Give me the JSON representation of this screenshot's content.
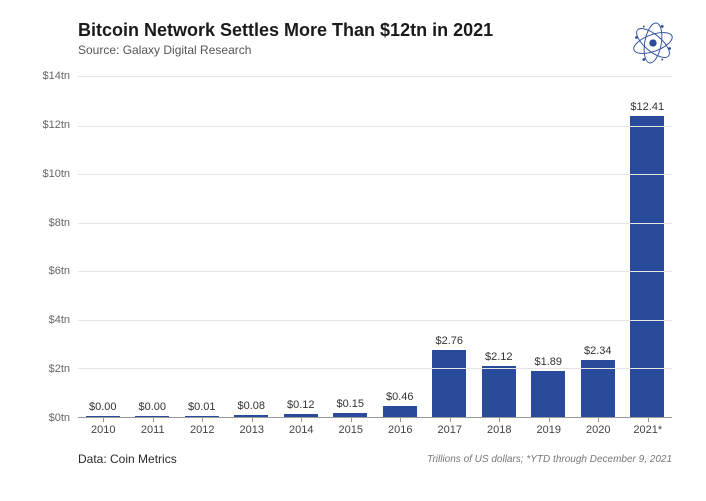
{
  "header": {
    "title": "Bitcoin Network Settles More Than $12tn in 2021",
    "subtitle": "Source: Galaxy Digital Research"
  },
  "chart": {
    "type": "bar",
    "bar_color": "#2a4b9b",
    "background_color": "#ffffff",
    "grid_color": "#e5e5e5",
    "axis_color": "#999999",
    "bar_width": 0.68,
    "ylim": [
      0,
      14
    ],
    "ytick_step": 2,
    "y_ticks": [
      {
        "v": 0,
        "label": "$0tn"
      },
      {
        "v": 2,
        "label": "$2tn"
      },
      {
        "v": 4,
        "label": "$4tn"
      },
      {
        "v": 6,
        "label": "$6tn"
      },
      {
        "v": 8,
        "label": "$8tn"
      },
      {
        "v": 10,
        "label": "$10tn"
      },
      {
        "v": 12,
        "label": "$12tn"
      },
      {
        "v": 14,
        "label": "$14tn"
      }
    ],
    "series": [
      {
        "x": "2010",
        "v": 0.0,
        "label": "$0.00"
      },
      {
        "x": "2011",
        "v": 0.0,
        "label": "$0.00"
      },
      {
        "x": "2012",
        "v": 0.01,
        "label": "$0.01"
      },
      {
        "x": "2013",
        "v": 0.08,
        "label": "$0.08"
      },
      {
        "x": "2014",
        "v": 0.12,
        "label": "$0.12"
      },
      {
        "x": "2015",
        "v": 0.15,
        "label": "$0.15"
      },
      {
        "x": "2016",
        "v": 0.46,
        "label": "$0.46"
      },
      {
        "x": "2017",
        "v": 2.76,
        "label": "$2.76"
      },
      {
        "x": "2018",
        "v": 2.12,
        "label": "$2.12"
      },
      {
        "x": "2019",
        "v": 1.89,
        "label": "$1.89"
      },
      {
        "x": "2020",
        "v": 2.34,
        "label": "$2.34"
      },
      {
        "x": "2021*",
        "v": 12.41,
        "label": "$12.41"
      }
    ],
    "title_fontsize": 18,
    "label_fontsize": 11
  },
  "footer": {
    "data_source": "Data: Coin Metrics",
    "note": "Trillions of US dollars; *YTD through December 9, 2021"
  },
  "logo": {
    "name": "galaxy-logo",
    "stroke": "#2a4b9b",
    "dot": "#2a4b9b"
  }
}
